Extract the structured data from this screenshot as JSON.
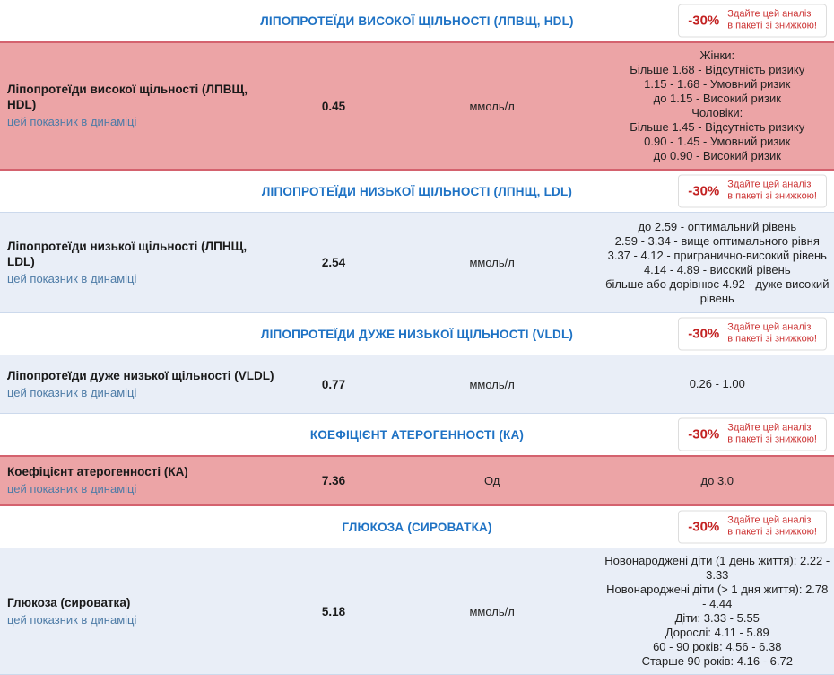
{
  "badge": {
    "discount": "-30%",
    "text": "Здайте цей аналіз\nв пакеті зі знижкою!"
  },
  "link_label": "цей показник в динаміці",
  "sections": [
    {
      "title": "ЛІПОПРОТЕЇДИ ВИСОКОЇ ЩІЛЬНОСТІ (ЛПВЩ, HDL)",
      "row": {
        "name": "Ліпопротеїди високої щільності (ЛПВЩ, HDL)",
        "value": "0.45",
        "unit": "ммоль/л",
        "reference": "Жінки:\nБільше 1.68 - Відсутність ризику\n1.15 - 1.68 - Умовний ризик\nдо 1.15 - Високий ризик\nЧоловіки:\nБільше 1.45 - Відсутність ризику\n0.90 - 1.45 - Умовний ризик\nдо 0.90 - Високий ризик",
        "status": "alert"
      }
    },
    {
      "title": "ЛІПОПРОТЕЇДИ НИЗЬКОЇ ЩІЛЬНОСТІ (ЛПНЩ, LDL)",
      "row": {
        "name": "Ліпопротеїди низької щільності (ЛПНЩ, LDL)",
        "value": "2.54",
        "unit": "ммоль/л",
        "reference": "до 2.59 - оптимальний рівень\n2.59 - 3.34 - вище оптимального рівня\n3.37 - 4.12 - пригранично-високий рівень\n4.14 - 4.89 - високий рівень\nбільше або дорівнює 4.92 - дуже високий рівень",
        "status": "normal"
      }
    },
    {
      "title": "ЛІПОПРОТЕЇДИ ДУЖЕ НИЗЬКОЇ ЩІЛЬНОСТІ (VLDL)",
      "row": {
        "name": "Ліпопротеїди дуже низької щільності (VLDL)",
        "value": "0.77",
        "unit": "ммоль/л",
        "reference": "0.26 - 1.00",
        "status": "normal"
      }
    },
    {
      "title": "КОЕФІЦІЄНТ АТЕРОГЕННОСТІ (КА)",
      "row": {
        "name": "Коефіцієнт атерогенності (КА)",
        "value": "7.36",
        "unit": "Од",
        "reference": "до 3.0",
        "status": "alert"
      }
    },
    {
      "title": "ГЛЮКОЗА (СИРОВАТКА)",
      "row": {
        "name": "Глюкоза (сироватка)",
        "value": "5.18",
        "unit": "ммоль/л",
        "reference": "Новонароджені діти (1 день життя): 2.22 - 3.33\nНовонароджені діти (> 1 дня життя): 2.78 - 4.44\nДіти: 3.33 - 5.55\nДорослі: 4.11 - 5.89\n60 - 90 років: 4.56 - 6.38\nСтарше 90 років: 4.16 - 6.72",
        "status": "normal"
      }
    }
  ],
  "colors": {
    "accent_blue": "#1e72c4",
    "link_blue": "#4d7ba6",
    "badge_red": "#cc3333",
    "alert_row_bg": "#eca4a6",
    "alert_row_border": "#d4626e",
    "normal_row_bg": "#e9eef7",
    "normal_row_border": "#ccd9ec"
  }
}
